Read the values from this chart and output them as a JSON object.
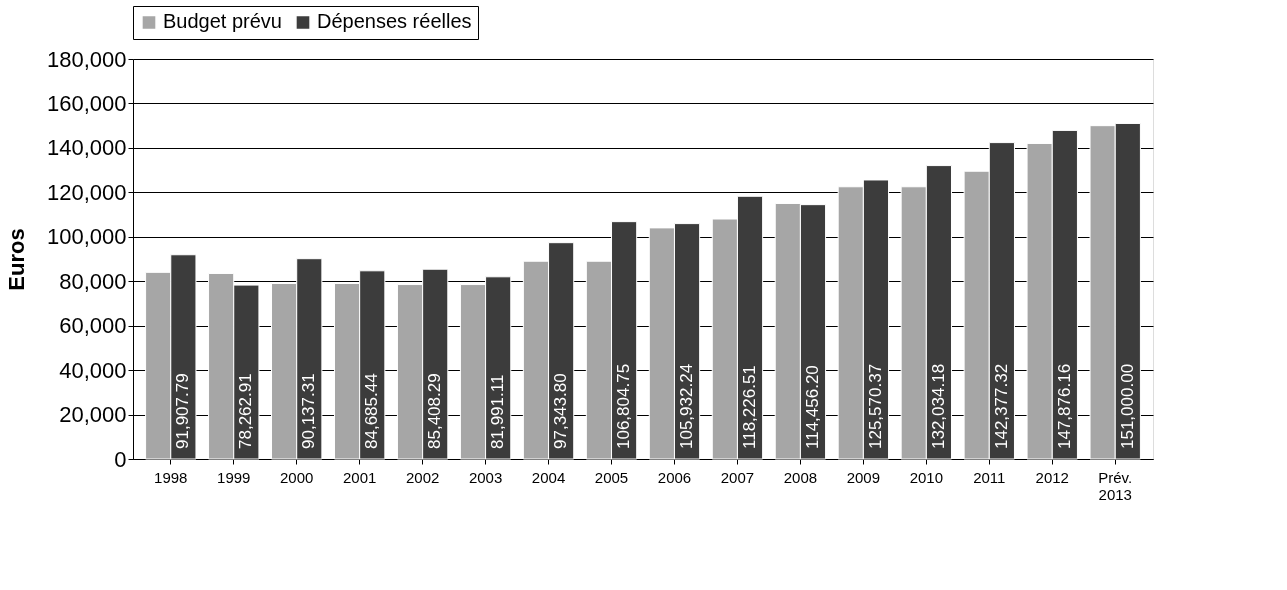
{
  "chart_data": {
    "type": "bar",
    "ylabel": "Euros",
    "categories": [
      "1998",
      "1999",
      "2000",
      "2001",
      "2002",
      "2003",
      "2004",
      "2005",
      "2006",
      "2007",
      "2008",
      "2009",
      "2010",
      "2011",
      "2012",
      "Prév. 2013"
    ],
    "series": [
      {
        "name": "Budget prévu",
        "color": "#a6a6a6",
        "values": [
          84000,
          83500,
          79000,
          79000,
          78500,
          78500,
          89000,
          89000,
          104000,
          108000,
          115000,
          122500,
          122500,
          129500,
          142000,
          150000
        ]
      },
      {
        "name": "Dépenses réelles",
        "color": "#3c3c3c",
        "values": [
          91907.79,
          78262.91,
          90137.31,
          84685.44,
          85408.29,
          81991.11,
          97343.8,
          106804.75,
          105932.24,
          118226.51,
          114456.2,
          125570.37,
          132034.18,
          142377.32,
          147876.16,
          151000.0
        ],
        "value_labels": [
          "91,907.79",
          "78,262.91",
          "90,137.31",
          "84,685.44",
          "85,408.29",
          "81,991.11",
          "97,343.80",
          "106,804.75",
          "105,932.24",
          "118,226.51",
          "114,456.20",
          "125,570.37",
          "132,034.18",
          "142,377.32",
          "147,876.16",
          "151,000.00"
        ]
      }
    ],
    "ylim": [
      0,
      180000
    ],
    "yticks": [
      {
        "value": 0,
        "label": "0"
      },
      {
        "value": 20000,
        "label": "20,000"
      },
      {
        "value": 40000,
        "label": "40,000"
      },
      {
        "value": 60000,
        "label": "60,000"
      },
      {
        "value": 80000,
        "label": "80,000"
      },
      {
        "value": 100000,
        "label": "100,000"
      },
      {
        "value": 120000,
        "label": "120,000"
      },
      {
        "value": 140000,
        "label": "140,000"
      },
      {
        "value": 160000,
        "label": "160,000"
      },
      {
        "value": 180000,
        "label": "180,000"
      }
    ],
    "grid": "y",
    "legend": "top"
  }
}
